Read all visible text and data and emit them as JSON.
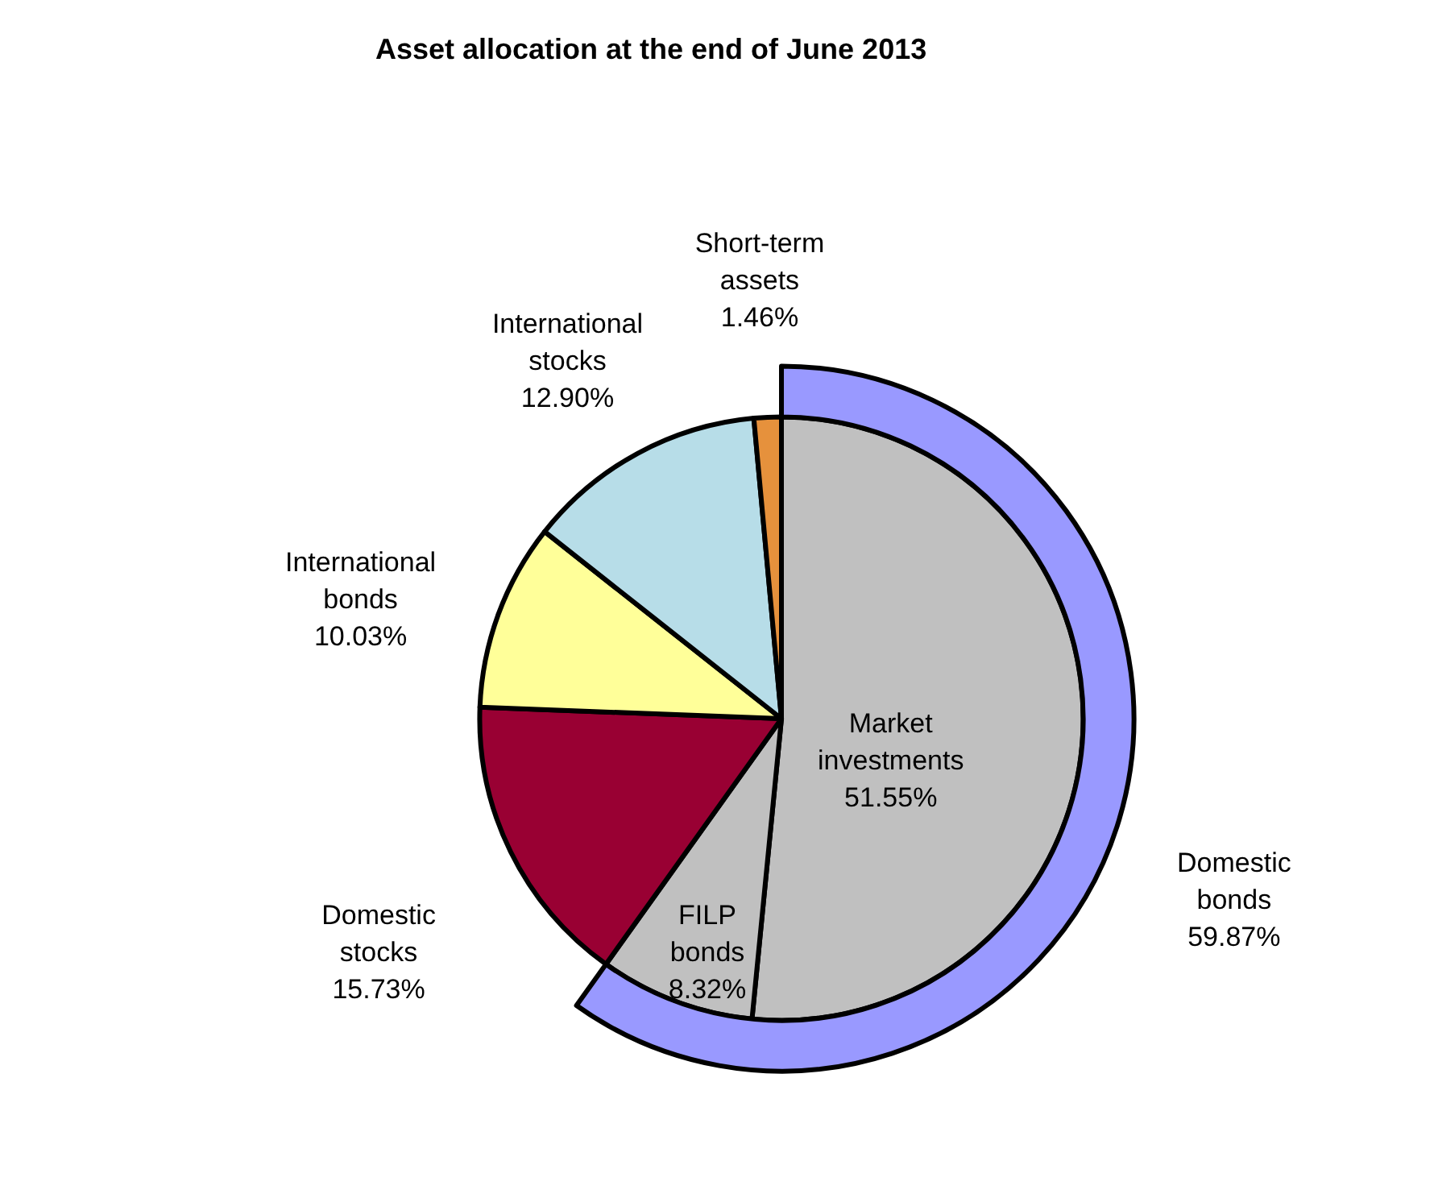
{
  "chart_data": {
    "type": "pie",
    "title": "Asset allocation at the end of June 2013",
    "categories": [
      "Market investments",
      "FILP bonds",
      "Domestic stocks",
      "International bonds",
      "International stocks",
      "Short-term assets"
    ],
    "series": [
      {
        "type": "pie",
        "values": [
          51.55,
          8.32,
          15.73,
          10.03,
          12.9,
          1.46
        ],
        "colors": [
          "#c0c0c0",
          "#c0c0c0",
          "#990033",
          "#ffff99",
          "#b7dde8",
          "#e6913c"
        ],
        "value_labels": [
          "51.55%",
          "8.32%",
          "15.73%",
          "10.03%",
          "12.90%",
          "1.46%"
        ]
      },
      {
        "type": "donut",
        "name": "Domestic bonds",
        "color": "#9999ff",
        "values": [
          59.87,
          null,
          null,
          null,
          null,
          null
        ],
        "value_labels": [
          "59.87%",
          null,
          null,
          null,
          null,
          null
        ]
      }
    ]
  }
}
